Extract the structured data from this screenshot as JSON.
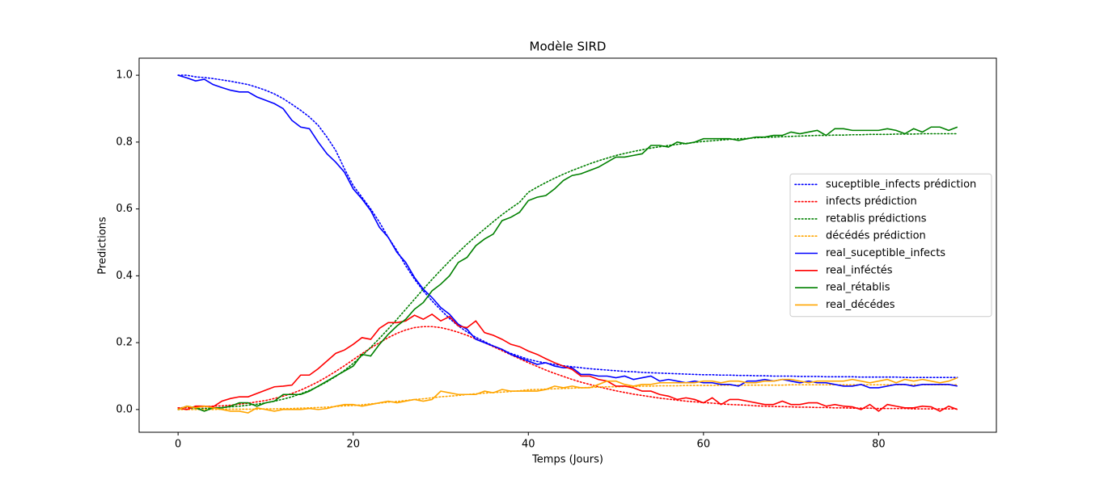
{
  "chart_data": {
    "type": "line",
    "title": "Modèle SIRD",
    "xlabel": "Temps (Jours)",
    "ylabel": "Predictions",
    "x": [
      0,
      1,
      2,
      3,
      4,
      5,
      6,
      7,
      8,
      9,
      10,
      11,
      12,
      13,
      14,
      15,
      16,
      17,
      18,
      19,
      20,
      21,
      22,
      23,
      24,
      25,
      26,
      27,
      28,
      29,
      30,
      31,
      32,
      33,
      34,
      35,
      36,
      37,
      38,
      39,
      40,
      41,
      42,
      43,
      44,
      45,
      46,
      47,
      48,
      49,
      50,
      51,
      52,
      53,
      54,
      55,
      56,
      57,
      58,
      59,
      60,
      61,
      62,
      63,
      64,
      65,
      66,
      67,
      68,
      69,
      70,
      71,
      72,
      73,
      74,
      75,
      76,
      77,
      78,
      79,
      80,
      81,
      82,
      83,
      84,
      85,
      86,
      87,
      88,
      89
    ],
    "xlim": [
      -4.45,
      93.45
    ],
    "xticks": [
      0,
      20,
      40,
      60,
      80
    ],
    "ylim": [
      -0.068,
      1.051
    ],
    "yticks": [
      {
        "value": 0,
        "label": "0.0"
      },
      {
        "value": 0.2,
        "label": "0.2"
      },
      {
        "value": 0.4,
        "label": "0.4"
      },
      {
        "value": 0.6,
        "label": "0.6"
      },
      {
        "value": 0.8,
        "label": "0.8"
      },
      {
        "value": 1,
        "label": "1.0"
      }
    ],
    "legend": "center right",
    "series": [
      {
        "name": "suceptible_infects prédiction",
        "color": "#0000ff",
        "linestyle": "dotted",
        "values": [
          1.0,
          1.0,
          0.995,
          0.993,
          0.99,
          0.986,
          0.982,
          0.977,
          0.972,
          0.964,
          0.955,
          0.944,
          0.93,
          0.913,
          0.895,
          0.875,
          0.85,
          0.815,
          0.775,
          0.72,
          0.67,
          0.635,
          0.6,
          0.56,
          0.515,
          0.475,
          0.43,
          0.39,
          0.355,
          0.325,
          0.298,
          0.272,
          0.25,
          0.232,
          0.216,
          0.203,
          0.19,
          0.179,
          0.168,
          0.159,
          0.15,
          0.144,
          0.139,
          0.135,
          0.131,
          0.128,
          0.125,
          0.122,
          0.12,
          0.118,
          0.116,
          0.114,
          0.113,
          0.111,
          0.11,
          0.109,
          0.108,
          0.107,
          0.106,
          0.105,
          0.104,
          0.104,
          0.103,
          0.103,
          0.102,
          0.102,
          0.101,
          0.101,
          0.1,
          0.1,
          0.1,
          0.099,
          0.099,
          0.099,
          0.098,
          0.098,
          0.098,
          0.098,
          0.097,
          0.097,
          0.097,
          0.097,
          0.097,
          0.096,
          0.096,
          0.096,
          0.096,
          0.096,
          0.096,
          0.096
        ]
      },
      {
        "name": "infects prédiction",
        "color": "#ff0000",
        "linestyle": "dotted",
        "values": [
          0.005,
          0.006,
          0.007,
          0.008,
          0.01,
          0.011,
          0.013,
          0.016,
          0.019,
          0.023,
          0.027,
          0.033,
          0.04,
          0.048,
          0.058,
          0.07,
          0.083,
          0.098,
          0.114,
          0.131,
          0.149,
          0.167,
          0.184,
          0.2,
          0.215,
          0.228,
          0.238,
          0.245,
          0.248,
          0.248,
          0.245,
          0.239,
          0.231,
          0.222,
          0.211,
          0.2,
          0.188,
          0.176,
          0.164,
          0.152,
          0.14,
          0.129,
          0.118,
          0.108,
          0.099,
          0.09,
          0.082,
          0.075,
          0.068,
          0.062,
          0.056,
          0.051,
          0.046,
          0.042,
          0.038,
          0.034,
          0.031,
          0.028,
          0.025,
          0.023,
          0.021,
          0.019,
          0.017,
          0.015,
          0.014,
          0.013,
          0.011,
          0.01,
          0.009,
          0.009,
          0.008,
          0.007,
          0.007,
          0.006,
          0.006,
          0.005,
          0.005,
          0.004,
          0.004,
          0.004,
          0.003,
          0.003,
          0.003,
          0.003,
          0.002,
          0.002,
          0.002,
          0.002,
          0.002,
          0.002
        ]
      },
      {
        "name": "retablis prédictions",
        "color": "#008000",
        "linestyle": "dotted",
        "values": [
          0,
          0.001,
          0.002,
          0.003,
          0.004,
          0.006,
          0.008,
          0.01,
          0.013,
          0.016,
          0.02,
          0.025,
          0.031,
          0.038,
          0.047,
          0.057,
          0.069,
          0.083,
          0.099,
          0.117,
          0.138,
          0.161,
          0.186,
          0.213,
          0.241,
          0.27,
          0.3,
          0.33,
          0.36,
          0.389,
          0.417,
          0.444,
          0.47,
          0.495,
          0.518,
          0.54,
          0.562,
          0.583,
          0.602,
          0.62,
          0.65,
          0.665,
          0.679,
          0.692,
          0.704,
          0.715,
          0.725,
          0.735,
          0.744,
          0.752,
          0.76,
          0.766,
          0.772,
          0.777,
          0.782,
          0.786,
          0.79,
          0.793,
          0.796,
          0.799,
          0.802,
          0.804,
          0.806,
          0.808,
          0.81,
          0.811,
          0.813,
          0.814,
          0.815,
          0.816,
          0.817,
          0.818,
          0.819,
          0.82,
          0.82,
          0.821,
          0.821,
          0.822,
          0.822,
          0.823,
          0.823,
          0.823,
          0.824,
          0.824,
          0.824,
          0.825,
          0.825,
          0.825,
          0.825,
          0.825
        ]
      },
      {
        "name": "décédés prédiction",
        "color": "#ffa500",
        "linestyle": "dotted",
        "values": [
          0,
          0,
          0,
          0,
          0,
          0.001,
          0.001,
          0.001,
          0.001,
          0.001,
          0.002,
          0.002,
          0.003,
          0.003,
          0.004,
          0.005,
          0.006,
          0.007,
          0.009,
          0.011,
          0.012,
          0.014,
          0.017,
          0.019,
          0.022,
          0.024,
          0.027,
          0.03,
          0.032,
          0.035,
          0.038,
          0.04,
          0.042,
          0.045,
          0.047,
          0.049,
          0.051,
          0.052,
          0.054,
          0.056,
          0.059,
          0.06,
          0.061,
          0.062,
          0.063,
          0.064,
          0.065,
          0.066,
          0.067,
          0.068,
          0.068,
          0.069,
          0.069,
          0.07,
          0.07,
          0.071,
          0.071,
          0.071,
          0.072,
          0.072,
          0.072,
          0.072,
          0.073,
          0.073,
          0.073,
          0.073,
          0.073,
          0.073,
          0.073,
          0.073,
          0.074,
          0.074,
          0.074,
          0.074,
          0.074,
          0.074,
          0.074,
          0.074,
          0.074,
          0.074,
          0.074,
          0.074,
          0.074,
          0.074,
          0.074,
          0.074,
          0.074,
          0.074,
          0.074,
          0.074
        ]
      },
      {
        "name": "real_suceptible_infects",
        "color": "#0000ff",
        "linestyle": "solid",
        "values": [
          1.0,
          0.992,
          0.983,
          0.988,
          0.972,
          0.963,
          0.955,
          0.95,
          0.95,
          0.935,
          0.925,
          0.915,
          0.9,
          0.865,
          0.845,
          0.84,
          0.8,
          0.765,
          0.74,
          0.71,
          0.66,
          0.63,
          0.595,
          0.545,
          0.515,
          0.47,
          0.44,
          0.395,
          0.36,
          0.335,
          0.305,
          0.285,
          0.255,
          0.24,
          0.21,
          0.2,
          0.19,
          0.18,
          0.165,
          0.155,
          0.145,
          0.135,
          0.14,
          0.13,
          0.125,
          0.125,
          0.105,
          0.105,
          0.1,
          0.1,
          0.095,
          0.1,
          0.09,
          0.095,
          0.1,
          0.085,
          0.09,
          0.085,
          0.08,
          0.085,
          0.08,
          0.08,
          0.075,
          0.075,
          0.07,
          0.085,
          0.085,
          0.09,
          0.085,
          0.09,
          0.085,
          0.08,
          0.085,
          0.08,
          0.08,
          0.075,
          0.07,
          0.07,
          0.075,
          0.065,
          0.065,
          0.07,
          0.075,
          0.075,
          0.07,
          0.075,
          0.075,
          0.075,
          0.075,
          0.07
        ]
      },
      {
        "name": "real_inféctés",
        "color": "#ff0000",
        "linestyle": "solid",
        "values": [
          0.005,
          0.0,
          0.01,
          0.01,
          0.008,
          0.025,
          0.033,
          0.038,
          0.038,
          0.048,
          0.058,
          0.068,
          0.07,
          0.073,
          0.103,
          0.103,
          0.122,
          0.145,
          0.168,
          0.178,
          0.195,
          0.215,
          0.21,
          0.243,
          0.26,
          0.26,
          0.265,
          0.282,
          0.27,
          0.285,
          0.265,
          0.278,
          0.25,
          0.245,
          0.265,
          0.23,
          0.222,
          0.21,
          0.195,
          0.188,
          0.175,
          0.165,
          0.152,
          0.14,
          0.13,
          0.12,
          0.1,
          0.1,
          0.09,
          0.085,
          0.07,
          0.07,
          0.065,
          0.055,
          0.055,
          0.045,
          0.04,
          0.03,
          0.035,
          0.03,
          0.02,
          0.035,
          0.015,
          0.03,
          0.03,
          0.025,
          0.02,
          0.015,
          0.015,
          0.025,
          0.015,
          0.015,
          0.02,
          0.02,
          0.01,
          0.015,
          0.01,
          0.008,
          0.0,
          0.015,
          -0.005,
          0.015,
          0.01,
          0.005,
          0.005,
          0.01,
          0.008,
          -0.005,
          0.01,
          0.0
        ]
      },
      {
        "name": "real_rétablis",
        "color": "#008000",
        "linestyle": "solid",
        "values": [
          0.0,
          0.01,
          0.005,
          -0.005,
          0.005,
          0.005,
          0.01,
          0.02,
          0.02,
          0.01,
          0.02,
          0.025,
          0.045,
          0.045,
          0.045,
          0.055,
          0.07,
          0.085,
          0.1,
          0.115,
          0.13,
          0.165,
          0.16,
          0.195,
          0.225,
          0.25,
          0.27,
          0.3,
          0.32,
          0.355,
          0.375,
          0.4,
          0.44,
          0.455,
          0.49,
          0.51,
          0.525,
          0.565,
          0.575,
          0.59,
          0.625,
          0.635,
          0.64,
          0.66,
          0.685,
          0.7,
          0.705,
          0.715,
          0.725,
          0.74,
          0.755,
          0.755,
          0.76,
          0.765,
          0.79,
          0.79,
          0.785,
          0.8,
          0.795,
          0.8,
          0.81,
          0.81,
          0.81,
          0.81,
          0.805,
          0.81,
          0.815,
          0.815,
          0.82,
          0.82,
          0.83,
          0.825,
          0.83,
          0.835,
          0.82,
          0.84,
          0.84,
          0.835,
          0.835,
          0.835,
          0.835,
          0.84,
          0.835,
          0.825,
          0.84,
          0.83,
          0.845,
          0.845,
          0.835,
          0.845
        ]
      },
      {
        "name": "real_décédes",
        "color": "#ffa500",
        "linestyle": "solid",
        "values": [
          0.0,
          0.01,
          0.005,
          0.01,
          0.005,
          0.0,
          -0.005,
          -0.005,
          -0.01,
          0.005,
          0.0,
          -0.005,
          0.0,
          0.0,
          0.0,
          0.003,
          0.0,
          0.003,
          0.01,
          0.015,
          0.015,
          0.01,
          0.015,
          0.02,
          0.025,
          0.02,
          0.025,
          0.03,
          0.025,
          0.03,
          0.055,
          0.05,
          0.045,
          0.045,
          0.045,
          0.055,
          0.05,
          0.06,
          0.055,
          0.055,
          0.055,
          0.055,
          0.06,
          0.07,
          0.065,
          0.07,
          0.065,
          0.065,
          0.075,
          0.085,
          0.085,
          0.075,
          0.07,
          0.075,
          0.075,
          0.08,
          0.08,
          0.08,
          0.08,
          0.08,
          0.085,
          0.085,
          0.08,
          0.085,
          0.085,
          0.08,
          0.08,
          0.085,
          0.085,
          0.09,
          0.09,
          0.085,
          0.08,
          0.085,
          0.085,
          0.085,
          0.085,
          0.09,
          0.085,
          0.08,
          0.085,
          0.09,
          0.08,
          0.09,
          0.085,
          0.09,
          0.085,
          0.08,
          0.085,
          0.095
        ]
      }
    ]
  }
}
